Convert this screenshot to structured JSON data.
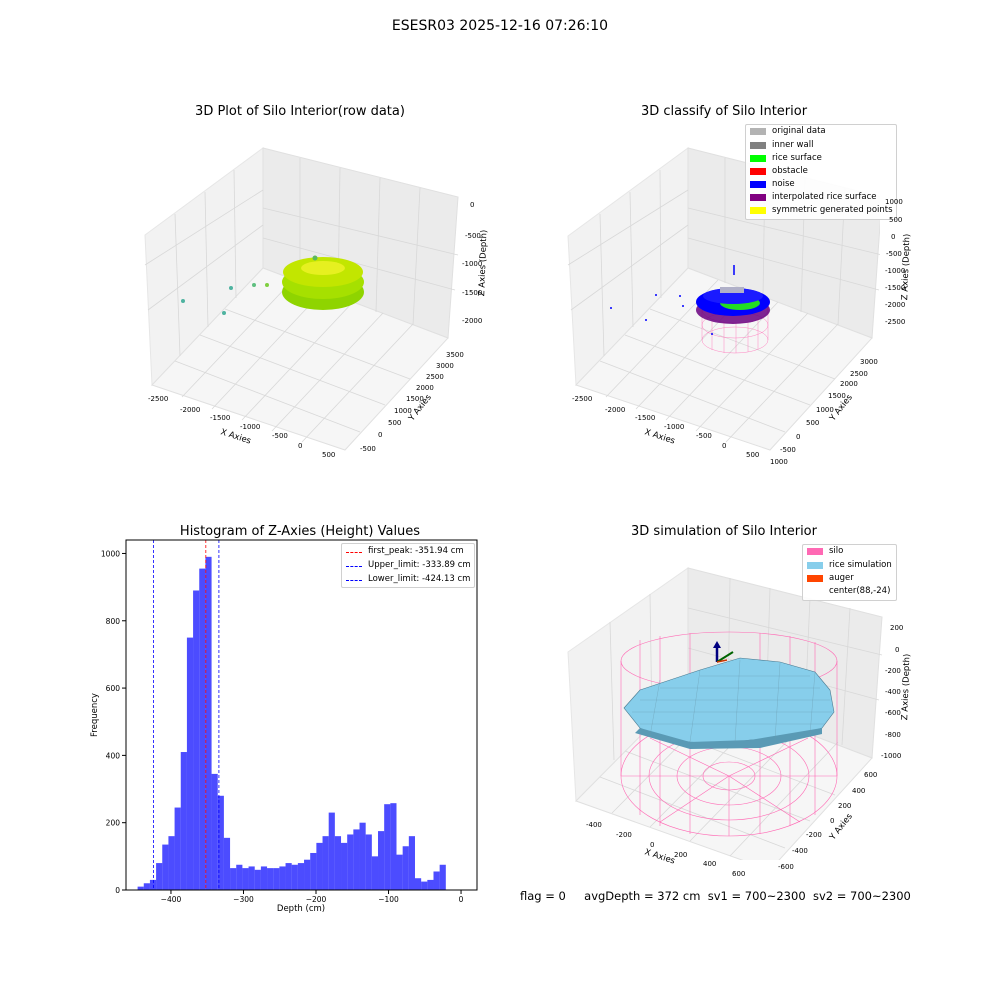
{
  "suptitle": "ESESR03 2025-12-16 07:26:10",
  "panels": {
    "raw": {
      "title": "3D Plot of Silo Interior(row data)",
      "xlabel": "X Axies",
      "ylabel": "Y Axies",
      "zlabel": "Z Axies (Depth)",
      "xticks": [
        "-2500",
        "-2000",
        "-1500",
        "-1000",
        "-500",
        "0",
        "500"
      ],
      "yticks": [
        "-500",
        "0",
        "500",
        "1000",
        "1500",
        "2000",
        "2500",
        "3000",
        "3500"
      ],
      "zticks": [
        "0",
        "-500",
        "-1000",
        "-1500",
        "-2000"
      ]
    },
    "classify": {
      "title": "3D classify of Silo Interior",
      "xlabel": "X Axies",
      "ylabel": "Y Axies",
      "zlabel": "Z Axies (Depth)",
      "xticks": [
        "-2500",
        "-2000",
        "-1500",
        "-1000",
        "-500",
        "0",
        "500",
        "1000"
      ],
      "yticks": [
        "-500",
        "0",
        "500",
        "1000",
        "1500",
        "2000",
        "2500",
        "3000"
      ],
      "zticks": [
        "1000",
        "500",
        "0",
        "-500",
        "-1000",
        "-1500",
        "-2000",
        "-2500"
      ],
      "legend": [
        {
          "label": "original data",
          "color": "#b3b3b3"
        },
        {
          "label": "inner wall",
          "color": "#808080"
        },
        {
          "label": "rice surface",
          "color": "#00ff00"
        },
        {
          "label": "obstacle",
          "color": "#ff0000"
        },
        {
          "label": "noise",
          "color": "#0000ff"
        },
        {
          "label": "interpolated rice surface",
          "color": "#800080"
        },
        {
          "label": "symmetric generated points",
          "color": "#ffff00"
        }
      ]
    },
    "simulation": {
      "title": "3D simulation of Silo Interior",
      "xlabel": "X Axies",
      "ylabel": "Y Axies",
      "zlabel": "Z Axies (Depth)",
      "xticks": [
        "-400",
        "-200",
        "0",
        "200",
        "400",
        "600"
      ],
      "yticks": [
        "-600",
        "-400",
        "-200",
        "0",
        "200",
        "400",
        "600"
      ],
      "zticks": [
        "200",
        "0",
        "-200",
        "-400",
        "-600",
        "-800",
        "-1000"
      ],
      "legend": [
        {
          "label": "silo",
          "color": "#ff69b4"
        },
        {
          "label": "rice simulation",
          "color": "#87ceeb"
        },
        {
          "label": "auger",
          "color": "#ff4500"
        },
        {
          "label": "center(88,-24)",
          "color": ""
        }
      ]
    }
  },
  "chart_data": [
    {
      "type": "bar",
      "title": "Histogram of Z-Axies (Height) Values",
      "xlabel": "Depth (cm)",
      "ylabel": "Frequency",
      "xlim": [
        -462,
        22
      ],
      "ylim": [
        0,
        1040
      ],
      "bar_color": "#0000ff",
      "grid": false,
      "legend_position": "top-right",
      "xticks": [
        -400,
        -300,
        -200,
        -100,
        0
      ],
      "yticks": [
        0,
        200,
        400,
        600,
        800,
        1000
      ],
      "bin_start": -446,
      "bin_width": 8.5,
      "values": [
        10,
        20,
        30,
        80,
        135,
        160,
        245,
        410,
        750,
        890,
        955,
        990,
        345,
        280,
        155,
        65,
        75,
        65,
        70,
        60,
        70,
        65,
        65,
        70,
        80,
        75,
        80,
        90,
        110,
        140,
        160,
        230,
        160,
        140,
        165,
        180,
        200,
        165,
        100,
        175,
        255,
        258,
        105,
        130,
        160,
        35,
        25,
        30,
        55,
        75
      ],
      "lines": [
        {
          "name": "first_peak: -351.94 cm",
          "x": -351.94,
          "color": "#ff0000"
        },
        {
          "name": "Upper_limit: -333.89 cm",
          "x": -333.89,
          "color": "#0000ff"
        },
        {
          "name": "Lower_limit: -424.13 cm",
          "x": -424.13,
          "color": "#0000ff"
        }
      ]
    }
  ],
  "footer": {
    "flag": "flag = 0",
    "avg": "avgDepth = 372 cm",
    "sv1": "sv1 = 700~2300",
    "sv2": "sv2 = 700~2300"
  }
}
